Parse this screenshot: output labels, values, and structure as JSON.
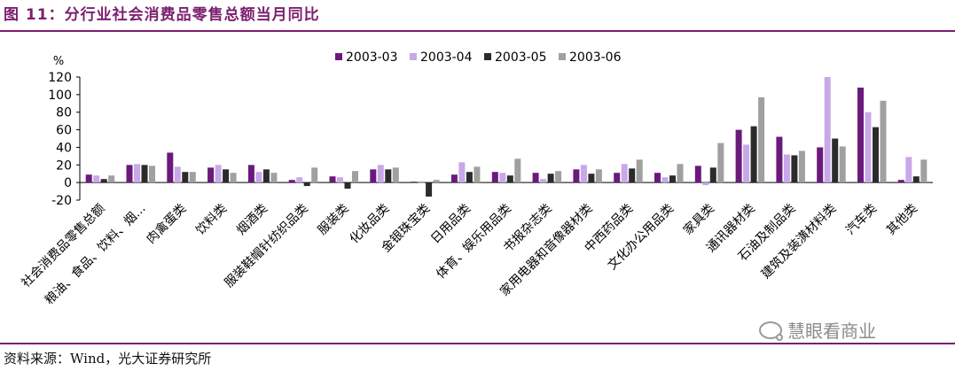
{
  "figure": {
    "title": "图 11：分行业社会消费品零售总额当月同比",
    "source": "资料来源：Wind，光大证券研究所",
    "watermark": "慧眼看商业"
  },
  "chart_data": {
    "type": "bar",
    "ylabel": "%",
    "ylim": [
      -20,
      120
    ],
    "yticks": [
      -20,
      0,
      20,
      40,
      60,
      80,
      100,
      120
    ],
    "grid": false,
    "legend_position": "top",
    "categories": [
      "社会消费品零售总额",
      "粮油、食品、饮料、烟...",
      "肉禽蛋类",
      "饮料类",
      "烟酒类",
      "服装鞋帽针纺织品类",
      "服装类",
      "化妆品类",
      "金银珠宝类",
      "日用品类",
      "体育、娱乐用品类",
      "书报杂志类",
      "家用电器和音像器材类",
      "中西药品类",
      "文化办公用品类",
      "家具类",
      "通讯器材类",
      "石油及制品类",
      "建筑及装潢材料类",
      "汽车类",
      "其他类"
    ],
    "series": [
      {
        "name": "2003-03",
        "color": "#6a1a7a",
        "values": [
          9,
          20,
          34,
          17,
          20,
          3,
          7,
          15,
          1,
          9,
          12,
          11,
          15,
          11,
          11,
          19,
          60,
          52,
          40,
          108,
          3
        ]
      },
      {
        "name": "2003-04",
        "color": "#c8a8e8",
        "values": [
          8,
          21,
          18,
          20,
          12,
          6,
          6,
          20,
          0,
          23,
          11,
          4,
          20,
          21,
          6,
          -3,
          43,
          32,
          120,
          80,
          29
        ]
      },
      {
        "name": "2003-05",
        "color": "#2b2b2b",
        "values": [
          4,
          20,
          12,
          15,
          15,
          -4,
          -7,
          15,
          -16,
          12,
          8,
          10,
          10,
          16,
          8,
          17,
          64,
          31,
          50,
          63,
          7
        ]
      },
      {
        "name": "2003-06",
        "color": "#a0a0a0",
        "values": [
          8,
          19,
          12,
          11,
          11,
          17,
          13,
          17,
          3,
          18,
          27,
          13,
          15,
          26,
          21,
          45,
          97,
          36,
          41,
          93,
          26
        ]
      }
    ]
  }
}
